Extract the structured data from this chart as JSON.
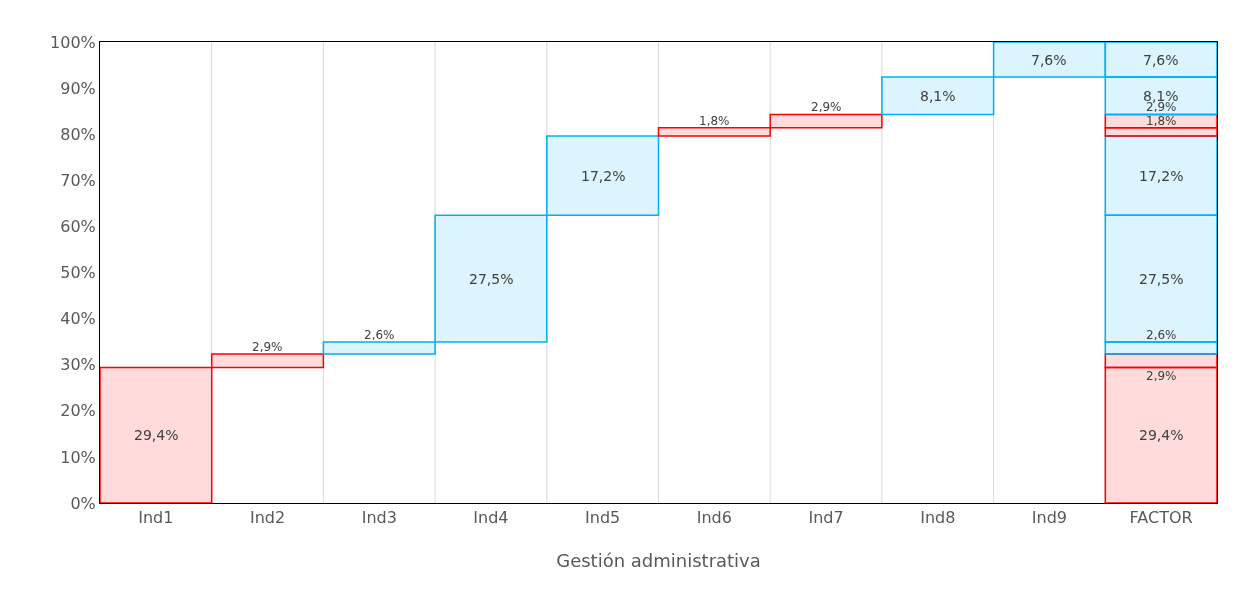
{
  "chart_data": {
    "type": "bar",
    "xlabel": "Gestión administrativa",
    "categories": [
      "Ind1",
      "Ind2",
      "Ind3",
      "Ind4",
      "Ind5",
      "Ind6",
      "Ind7",
      "Ind8",
      "Ind9",
      "FACTOR"
    ],
    "series": [
      {
        "color": "#ff0000",
        "values": [
          29.4,
          null,
          null,
          null,
          null,
          null,
          null,
          null,
          null,
          29.4
        ],
        "base": [
          0,
          null,
          null,
          null,
          null,
          null,
          null,
          null,
          null,
          0
        ],
        "value_labels": [
          "29,4%",
          null,
          null,
          null,
          null,
          null,
          null,
          null,
          null,
          "29,4%"
        ]
      },
      {
        "color": "#ff0000",
        "values": [
          null,
          2.9,
          null,
          null,
          null,
          null,
          null,
          null,
          null,
          2.9
        ],
        "base": [
          null,
          29.4,
          null,
          null,
          null,
          null,
          null,
          null,
          null,
          29.4
        ],
        "value_labels": [
          null,
          "2,9%",
          null,
          null,
          null,
          null,
          null,
          null,
          null,
          "2,9%"
        ]
      },
      {
        "color": "#00b0f0",
        "values": [
          null,
          null,
          2.6,
          null,
          null,
          null,
          null,
          null,
          null,
          2.6
        ],
        "base": [
          null,
          null,
          32.3,
          null,
          null,
          null,
          null,
          null,
          null,
          32.3
        ],
        "value_labels": [
          null,
          null,
          "2,6%",
          null,
          null,
          null,
          null,
          null,
          null,
          "2,6%"
        ]
      },
      {
        "color": "#00b0f0",
        "values": [
          null,
          null,
          null,
          27.5,
          null,
          null,
          null,
          null,
          null,
          27.5
        ],
        "base": [
          null,
          null,
          null,
          34.9,
          null,
          null,
          null,
          null,
          null,
          34.9
        ],
        "value_labels": [
          null,
          null,
          null,
          "27,5%",
          null,
          null,
          null,
          null,
          null,
          "27,5%"
        ]
      },
      {
        "color": "#00b0f0",
        "values": [
          null,
          null,
          null,
          null,
          17.2,
          null,
          null,
          null,
          null,
          17.2
        ],
        "base": [
          null,
          null,
          null,
          null,
          62.4,
          null,
          null,
          null,
          null,
          62.4
        ],
        "value_labels": [
          null,
          null,
          null,
          null,
          "17,2%",
          null,
          null,
          null,
          null,
          "17,2%"
        ]
      },
      {
        "color": "#ff0000",
        "values": [
          null,
          null,
          null,
          null,
          null,
          1.8,
          null,
          null,
          null,
          1.8
        ],
        "base": [
          null,
          null,
          null,
          null,
          null,
          79.6,
          null,
          null,
          null,
          79.6
        ],
        "value_labels": [
          null,
          null,
          null,
          null,
          null,
          "1,8%",
          null,
          null,
          null,
          "1,8%"
        ]
      },
      {
        "color": "#ff0000",
        "values": [
          null,
          null,
          null,
          null,
          null,
          null,
          2.9,
          null,
          null,
          2.9
        ],
        "base": [
          null,
          null,
          null,
          null,
          null,
          null,
          81.4,
          null,
          null,
          81.4
        ],
        "value_labels": [
          null,
          null,
          null,
          null,
          null,
          null,
          "2,9%",
          null,
          null,
          "2,9%"
        ]
      },
      {
        "color": "#00b0f0",
        "values": [
          null,
          null,
          null,
          null,
          null,
          null,
          null,
          8.1,
          null,
          8.1
        ],
        "base": [
          null,
          null,
          null,
          null,
          null,
          null,
          null,
          84.3,
          null,
          84.3
        ],
        "value_labels": [
          null,
          null,
          null,
          null,
          null,
          null,
          null,
          "8,1%",
          null,
          "8,1%"
        ]
      },
      {
        "color": "#00b0f0",
        "values": [
          null,
          null,
          null,
          null,
          null,
          null,
          null,
          null,
          7.6,
          7.6
        ],
        "base": [
          null,
          null,
          null,
          null,
          null,
          null,
          null,
          null,
          92.4,
          92.4
        ],
        "value_labels": [
          null,
          null,
          null,
          null,
          null,
          null,
          null,
          null,
          "7,6%",
          "7,6%"
        ]
      }
    ],
    "ylim": [
      0,
      100
    ],
    "yticks": [
      {
        "value": 0,
        "label": "0%"
      },
      {
        "value": 10,
        "label": "10%"
      },
      {
        "value": 20,
        "label": "20%"
      },
      {
        "value": 30,
        "label": "30%"
      },
      {
        "value": 40,
        "label": "40%"
      },
      {
        "value": 50,
        "label": "50%"
      },
      {
        "value": 60,
        "label": "60%"
      },
      {
        "value": 70,
        "label": "70%"
      },
      {
        "value": 80,
        "label": "80%"
      },
      {
        "value": 90,
        "label": "90%"
      },
      {
        "value": 100,
        "label": "100%"
      }
    ],
    "grid": "x"
  }
}
